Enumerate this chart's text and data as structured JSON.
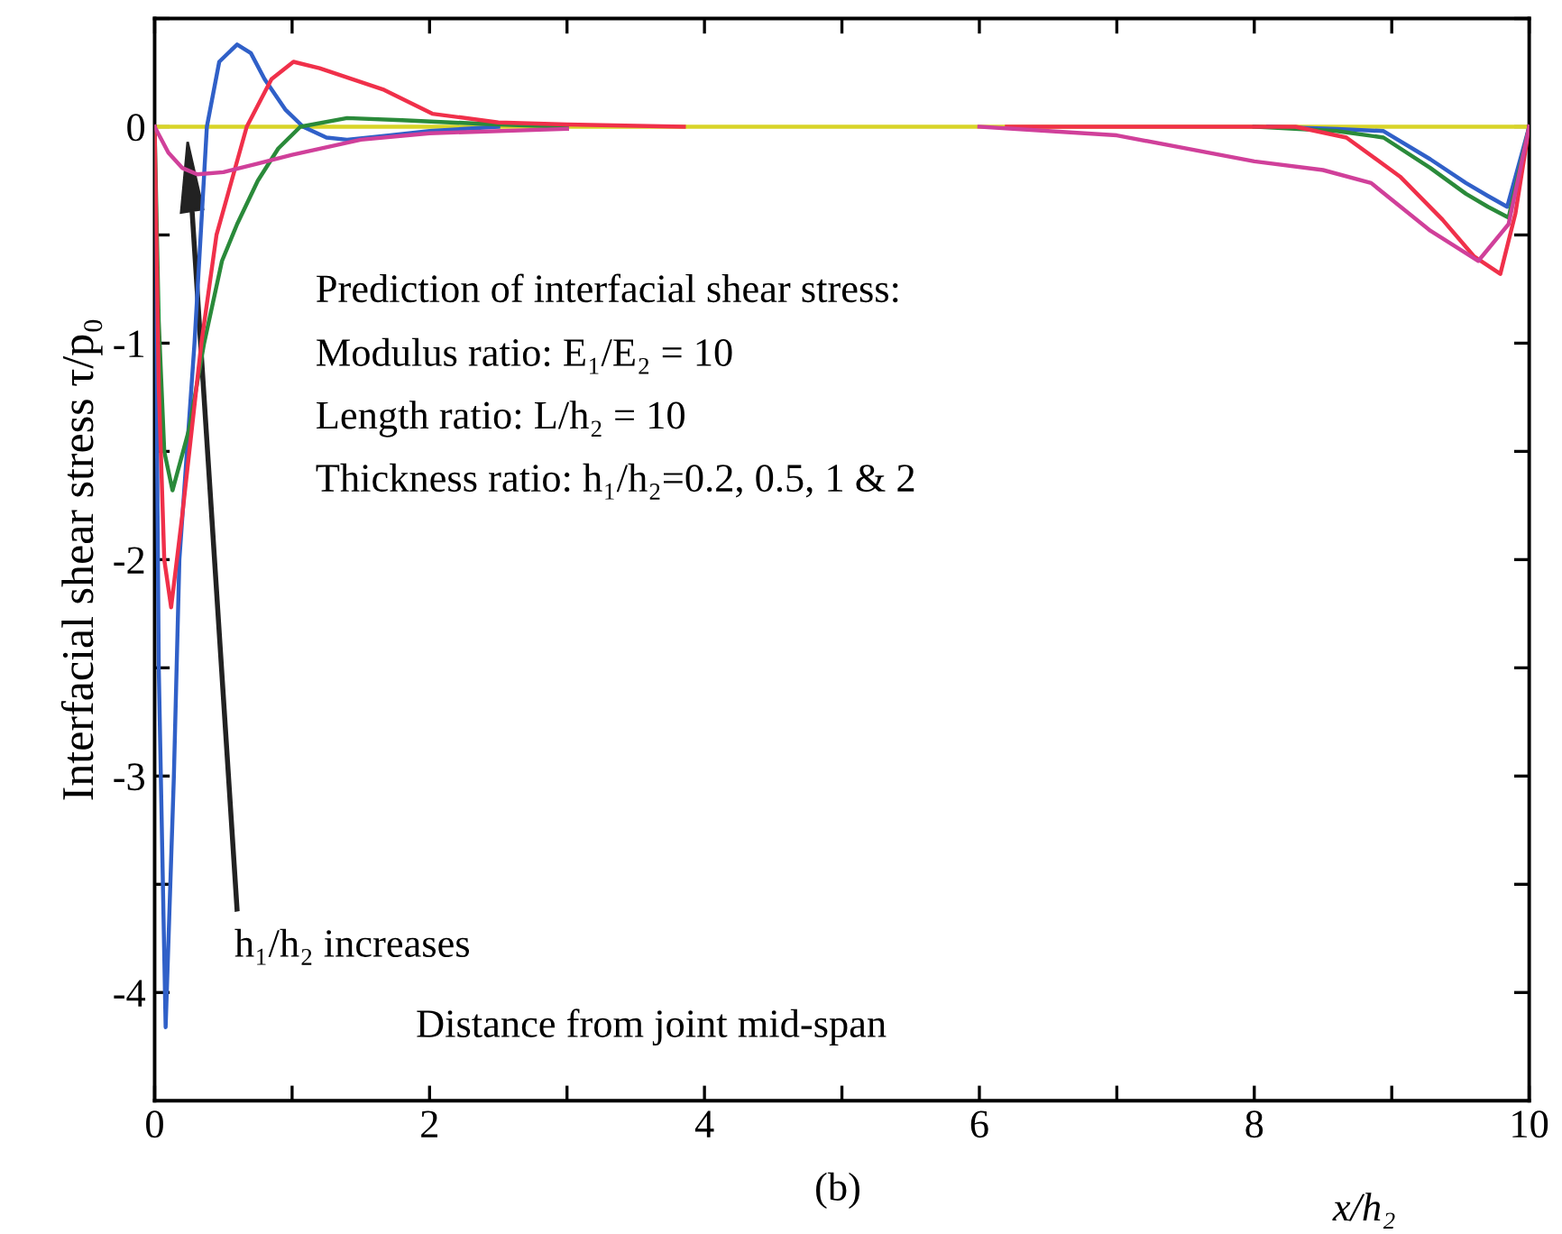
{
  "chart_data": {
    "type": "line",
    "ylabel": "Interfacial shear stress τ/p₀",
    "xlabel": "x/h₂",
    "annotations": [
      "Prediction of interfacial shear stress:",
      "Modulus ratio: E₁/E₂ = 10",
      "Length ratio: L/h₂ = 10",
      "Thickness ratio: h₁/h₂=0.2, 0.5, 1 & 2",
      "h₁/h₂ increases",
      "Distance from joint mid-span",
      "(b)"
    ],
    "xlim": [
      0,
      10
    ],
    "ylim": [
      -4.5,
      0.5
    ],
    "xticks": [
      0,
      {
        "value": 1,
        "label": null
      },
      2,
      {
        "value": 3,
        "label": null
      },
      4,
      {
        "value": 5,
        "label": null
      },
      6,
      {
        "value": 7,
        "label": null
      },
      8,
      {
        "value": 9,
        "label": null
      },
      10
    ],
    "yticks": [
      -4,
      {
        "value": -3.5,
        "label": null
      },
      -3,
      {
        "value": -2.5,
        "label": null
      },
      -2,
      {
        "value": -1.5,
        "label": null
      },
      -1,
      {
        "value": -0.5,
        "label": null
      },
      0,
      {
        "value": 0.5,
        "label": null
      }
    ],
    "grid": false,
    "legend": false,
    "marker": "none",
    "line_style": "solid",
    "series": [
      {
        "color": "#d8d428",
        "x": [
          0,
          10
        ],
        "values": [
          0,
          0
        ]
      },
      {
        "color": "#3060c8",
        "x": [
          0,
          0.03,
          0.08,
          0.14,
          0.18,
          0.29,
          0.38,
          0.47,
          0.6,
          0.7,
          0.8,
          0.95,
          1.08,
          1.25,
          1.4,
          1.7,
          2.0,
          2.5,
          5.0,
          8.1,
          8.6,
          8.94,
          9.28,
          9.54,
          9.7,
          9.84,
          10
        ],
        "values": [
          0,
          -2.5,
          -4.16,
          -3.0,
          -2.0,
          -1.0,
          0,
          0.3,
          0.38,
          0.34,
          0.22,
          0.08,
          0,
          -0.05,
          -0.06,
          -0.04,
          -0.02,
          0,
          null,
          0,
          -0.01,
          -0.02,
          -0.15,
          -0.26,
          -0.32,
          -0.37,
          0
        ]
      },
      {
        "color": "#2a8a3a",
        "x": [
          0,
          0.03,
          0.07,
          0.13,
          0.25,
          0.36,
          0.49,
          0.6,
          0.75,
          0.9,
          1.06,
          1.4,
          1.8,
          2.5,
          3.0,
          5.0,
          8.0,
          8.6,
          8.94,
          9.28,
          9.54,
          9.7,
          9.85,
          10
        ],
        "values": [
          0,
          -0.9,
          -1.5,
          -1.68,
          -1.4,
          -1.0,
          -0.62,
          -0.45,
          -0.25,
          -0.1,
          0,
          0.04,
          0.03,
          0.01,
          0,
          null,
          0,
          -0.02,
          -0.05,
          -0.19,
          -0.31,
          -0.37,
          -0.42,
          0
        ]
      },
      {
        "color": "#f0304a",
        "x": [
          0,
          0.03,
          0.07,
          0.12,
          0.2,
          0.34,
          0.45,
          0.67,
          0.85,
          1.01,
          1.2,
          1.67,
          2.02,
          2.5,
          3.0,
          3.85,
          5.0,
          6.2,
          8.3,
          8.67,
          9.06,
          9.37,
          9.6,
          9.79,
          9.9,
          10
        ],
        "values": [
          0,
          -1.2,
          -2.0,
          -2.22,
          -1.8,
          -1.0,
          -0.5,
          0,
          0.22,
          0.3,
          0.27,
          0.17,
          0.06,
          0.02,
          0.01,
          0,
          null,
          0,
          0,
          -0.05,
          -0.23,
          -0.43,
          -0.6,
          -0.68,
          -0.4,
          0
        ]
      },
      {
        "color": "#d0409a",
        "x": [
          0,
          0.1,
          0.2,
          0.31,
          0.5,
          0.75,
          1.0,
          1.5,
          2.0,
          3.0,
          4.5,
          6.0,
          7.0,
          8.0,
          8.5,
          8.85,
          9.28,
          9.63,
          9.85,
          10
        ],
        "values": [
          0,
          -0.12,
          -0.19,
          -0.22,
          -0.21,
          -0.17,
          -0.13,
          -0.06,
          -0.03,
          -0.01,
          null,
          0,
          -0.04,
          -0.16,
          -0.2,
          -0.26,
          -0.48,
          -0.62,
          -0.45,
          0
        ]
      }
    ]
  }
}
